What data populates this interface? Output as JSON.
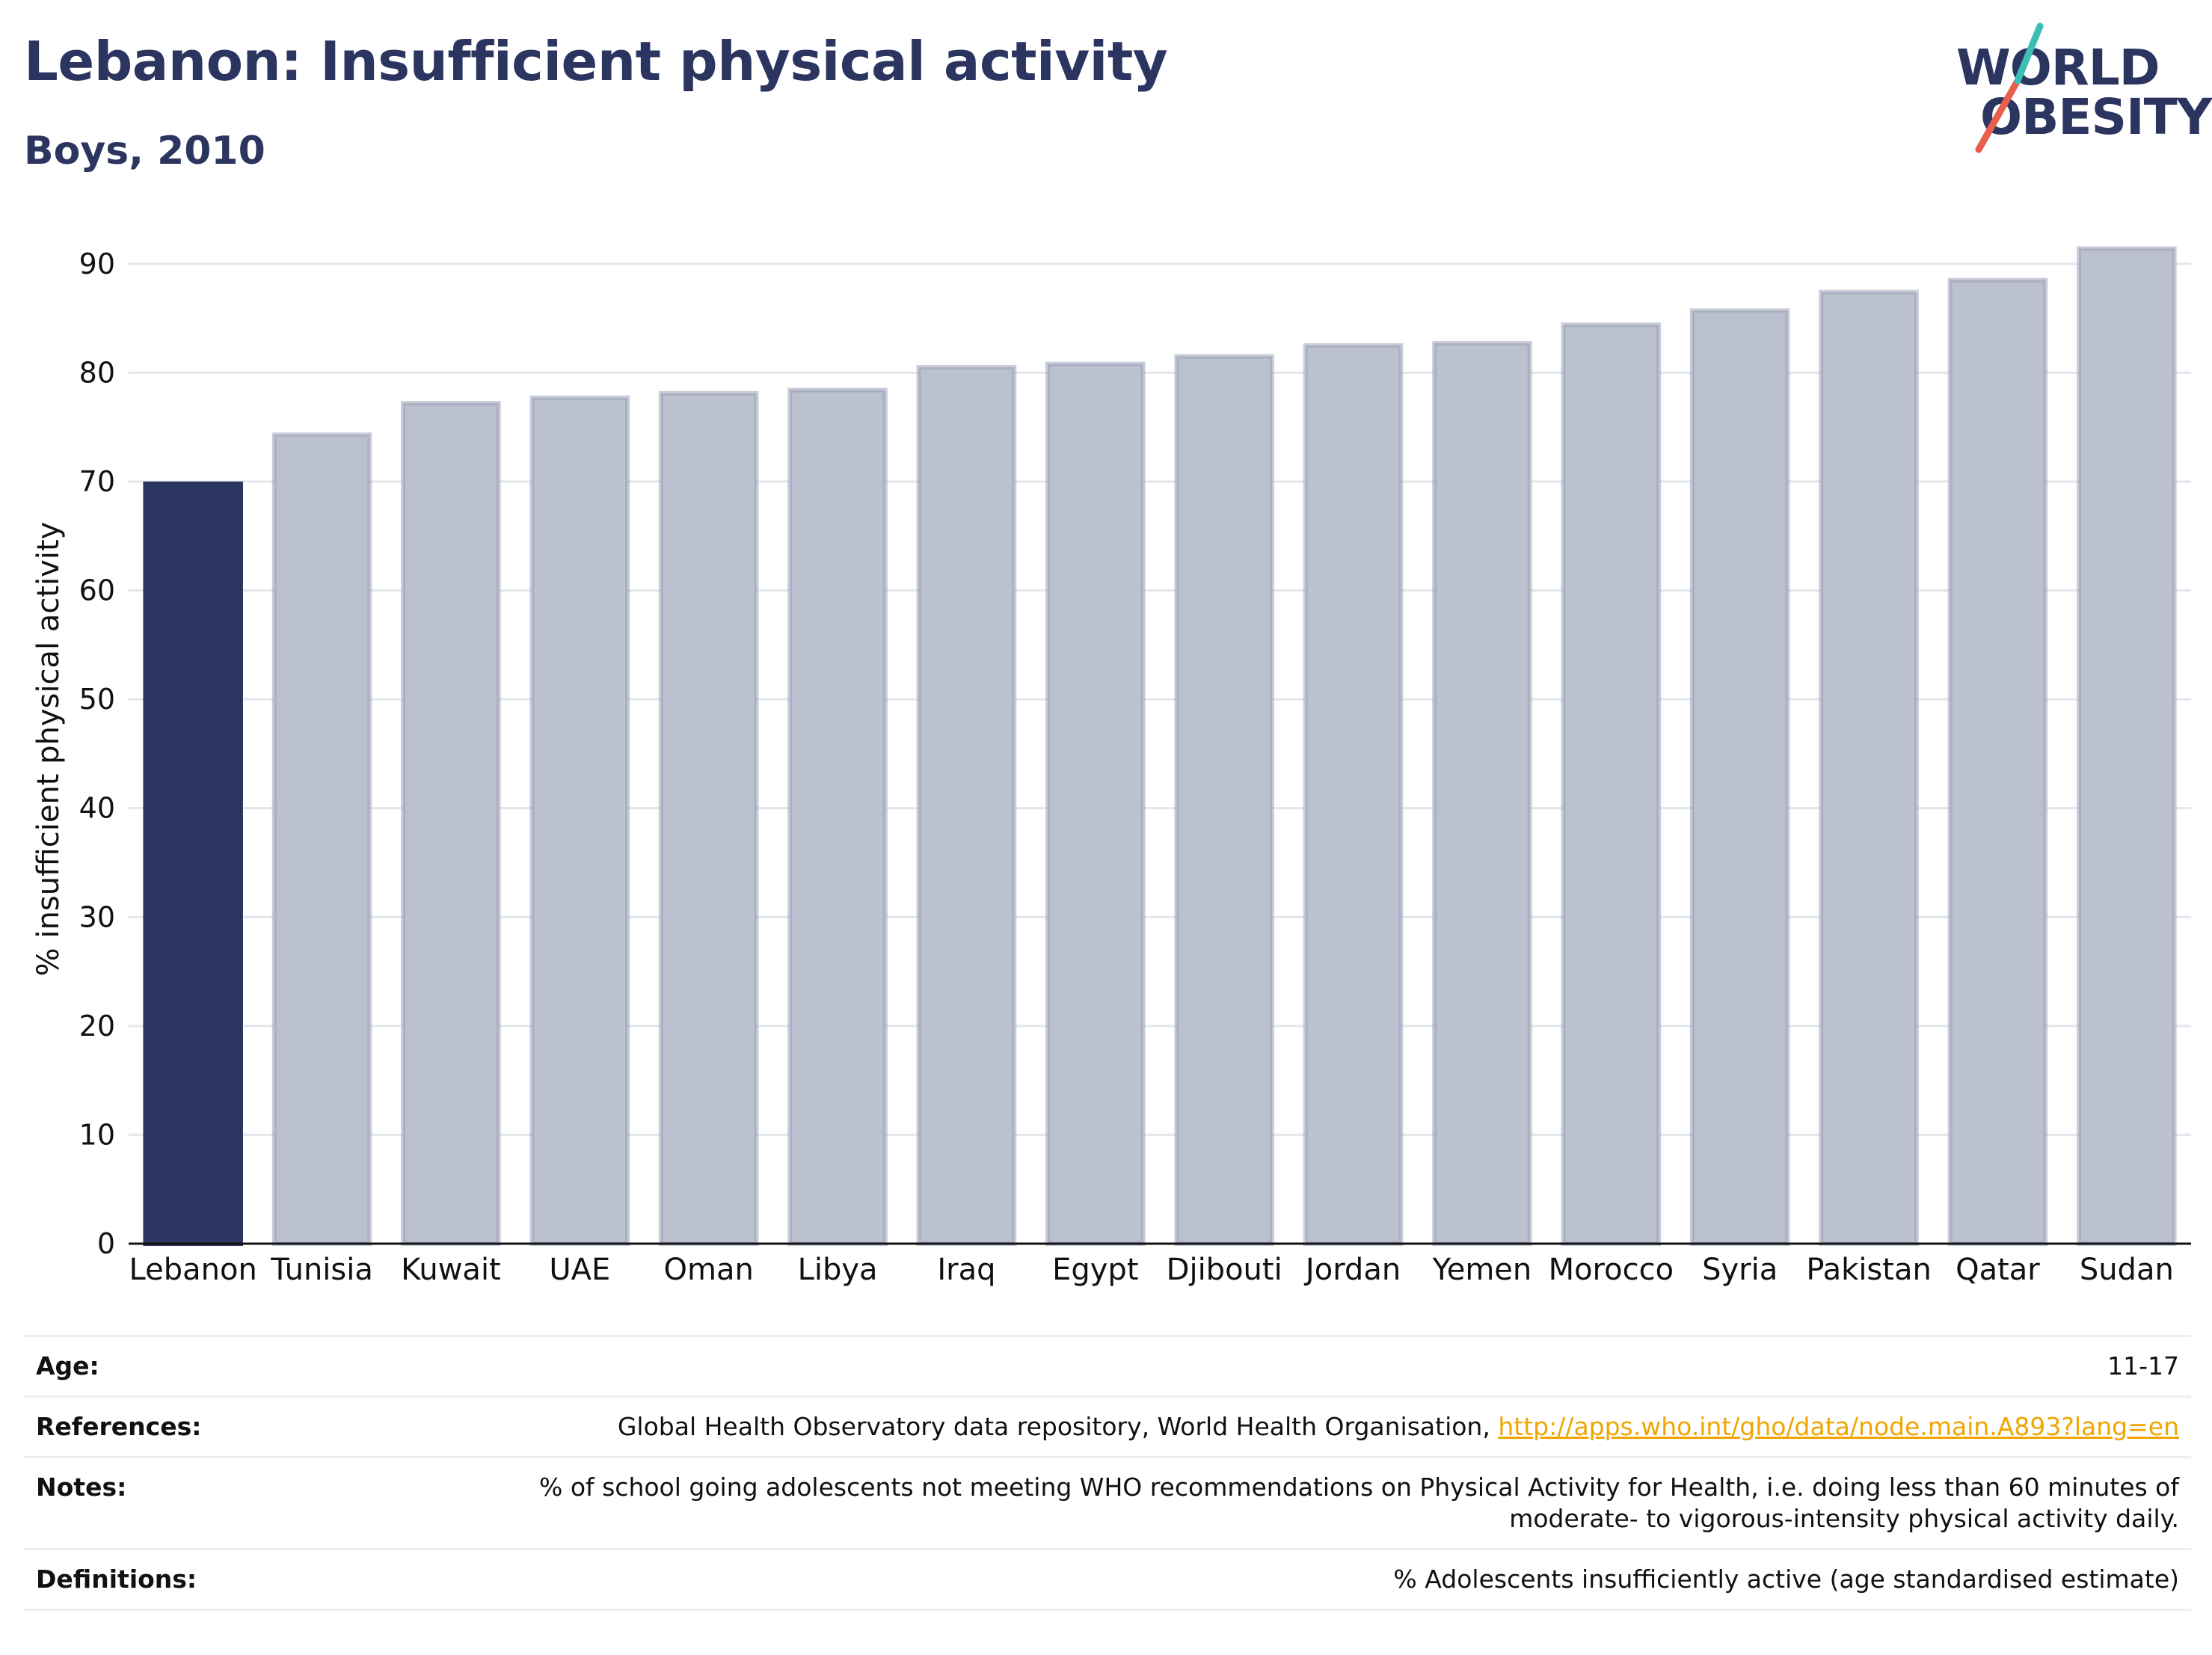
{
  "header": {
    "title": "Lebanon: Insufficient physical activity",
    "subtitle": "Boys, 2010"
  },
  "logo": {
    "line1": "WORLD",
    "line2": "OBESITY",
    "accent_teal": "#3bbfb3",
    "accent_red": "#e8604c"
  },
  "colors": {
    "highlight": "#2b3560",
    "bar": "#bcc1cf",
    "bar_outline": "#9aa1b8",
    "axis": "#111111",
    "grid": "#e4e6ee"
  },
  "chart_data": {
    "type": "bar",
    "title": "Lebanon: Insufficient physical activity",
    "subtitle": "Boys, 2010",
    "xlabel": "",
    "ylabel": "% insufficient physical activity",
    "ylim": [
      0,
      95
    ],
    "yticks": [
      0,
      10,
      20,
      30,
      40,
      50,
      60,
      70,
      80,
      90
    ],
    "grid": true,
    "highlight": "Lebanon",
    "categories": [
      "Lebanon",
      "Tunisia",
      "Kuwait",
      "UAE",
      "Oman",
      "Libya",
      "Iraq",
      "Egypt",
      "Djibouti",
      "Jordan",
      "Yemen",
      "Morocco",
      "Syria",
      "Pakistan",
      "Qatar",
      "Sudan"
    ],
    "values": [
      69.8,
      74.3,
      77.2,
      77.7,
      78.1,
      78.4,
      80.5,
      80.8,
      81.5,
      82.5,
      82.7,
      84.4,
      85.7,
      87.4,
      88.5,
      91.4
    ]
  },
  "meta": {
    "age_label": "Age:",
    "age_value": "11-17",
    "references_label": "References:",
    "references_text": "Global Health Observatory data repository, World Health Organisation,",
    "references_link": "http://apps.who.int/gho/data/node.main.A893?lang=en",
    "notes_label": "Notes:",
    "notes_line1": "% of school going adolescents not meeting WHO recommendations on Physical Activity for Health, i.e. doing less than 60 minutes of",
    "notes_line2": "moderate- to vigorous-intensity physical activity daily.",
    "definitions_label": "Definitions:",
    "definitions_value": "% Adolescents insufficiently active (age standardised estimate)"
  }
}
